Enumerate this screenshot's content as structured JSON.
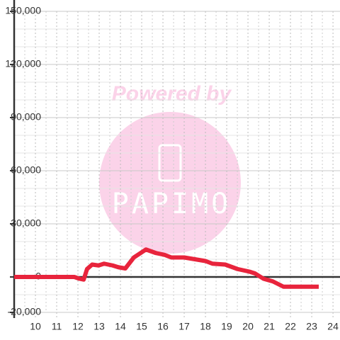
{
  "chart_data": {
    "type": "line",
    "watermark": [
      "Powered by",
      "PAPIMO"
    ],
    "x": [
      9.0,
      11.83,
      12.07,
      12.27,
      12.43,
      12.67,
      12.97,
      13.23,
      13.63,
      13.9,
      14.23,
      14.63,
      15.2,
      15.67,
      16.07,
      16.4,
      17.0,
      17.5,
      18.0,
      18.33,
      18.93,
      19.5,
      20.07,
      20.33,
      20.73,
      21.17,
      21.67,
      23.33
    ],
    "series": [
      {
        "color": "#e8243c",
        "values": [
          0,
          0,
          -1000,
          -1500,
          4500,
          7000,
          6500,
          7500,
          6500,
          5500,
          4800,
          11000,
          15500,
          13500,
          12500,
          11000,
          11000,
          10000,
          9000,
          7500,
          7000,
          4500,
          3000,
          2000,
          -1000,
          -2500,
          -5500,
          -5500
        ]
      }
    ],
    "xlim": [
      9,
      24.33
    ],
    "xticks": [
      10,
      11,
      12,
      13,
      14,
      15,
      16,
      17,
      18,
      19,
      20,
      21,
      22,
      23,
      24
    ],
    "xminorticks": [
      9.5,
      10.5,
      11.5,
      12.5,
      13.5,
      14.5,
      15.5,
      16.5,
      17.5,
      18.5,
      19.5,
      20.5,
      21.5,
      22.5,
      23.5
    ],
    "ylim": [
      -20000,
      150000
    ],
    "yticks": [
      {
        "value": -20000,
        "label": "-20,000"
      },
      0,
      {
        "value": 30000,
        "label": "30,000"
      },
      {
        "value": 60000,
        "label": "60,000"
      },
      {
        "value": 90000,
        "label": "90,000"
      },
      {
        "value": 120000,
        "label": "120,000"
      },
      {
        "value": 150000,
        "label": "150,000"
      }
    ],
    "yminorticks": [
      -10000,
      10000,
      20000,
      40000,
      50000,
      70000,
      80000,
      100000,
      110000,
      130000,
      140000
    ],
    "grid": true
  }
}
